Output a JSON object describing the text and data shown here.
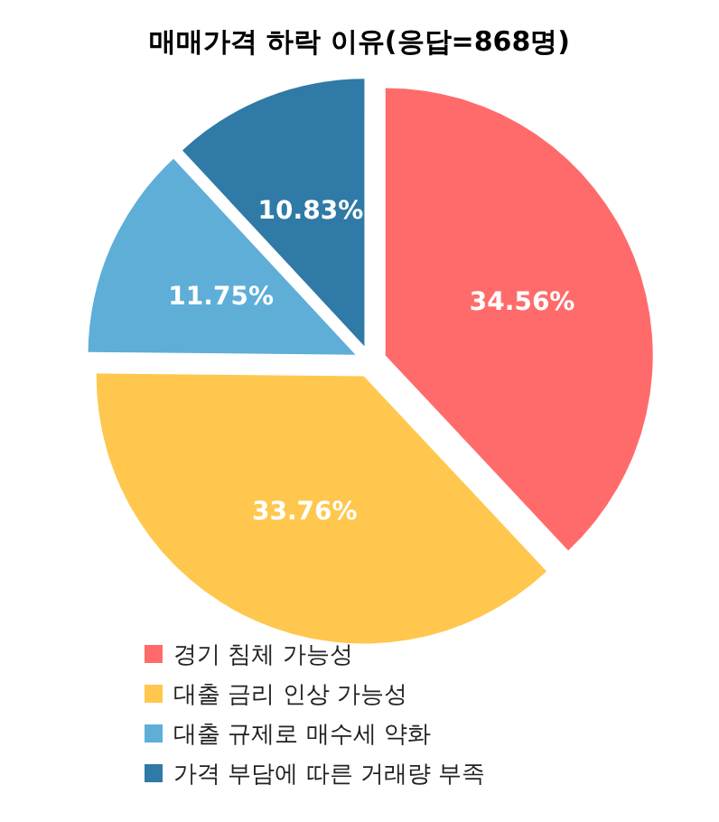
{
  "chart_data": {
    "type": "pie",
    "title": "매매가격 하락 이유(응답=868명)",
    "categories": [
      "경기 침체 가능성",
      "대출 금리 인상 가능성",
      "대출 규제로 매수세 약화",
      "가격 부담에 따른 거래량 부족"
    ],
    "values": [
      34.56,
      33.76,
      11.75,
      10.83
    ],
    "colors": [
      "#ff6b6b",
      "#ffc74d",
      "#5eaed8",
      "#2f7aa6"
    ],
    "value_labels": [
      "34.56%",
      "33.76%",
      "11.75%",
      "10.83%"
    ],
    "legend": "bottom"
  }
}
